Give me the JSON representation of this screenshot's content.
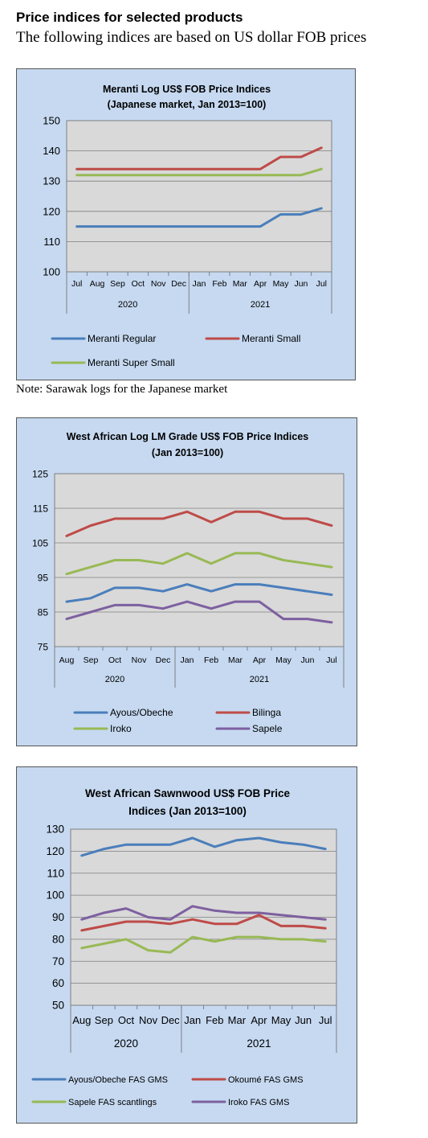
{
  "header": {
    "title": "Price indices for selected products",
    "subtitle": "The following indices are based on US dollar FOB prices"
  },
  "note": "Note: Sarawak logs for the Japanese market",
  "colors": {
    "blue": "#4a7ebb",
    "red": "#be4b48",
    "green": "#98b954",
    "purple": "#7d60a0",
    "panel_bg": "#c6d9f1",
    "plot_bg": "#d9d9d9"
  },
  "chart_data": [
    {
      "type": "line",
      "title": [
        "Meranti Log US$ FOB Price Indices",
        "(Japanese market, Jan 2013=100)"
      ],
      "categories": [
        "Jul",
        "Aug",
        "Sep",
        "Oct",
        "Nov",
        "Dec",
        "Jan",
        "Feb",
        "Mar",
        "Apr",
        "May",
        "Jun",
        "Jul"
      ],
      "year_groups": [
        {
          "label": "2020",
          "count": 6
        },
        {
          "label": "2021",
          "count": 7
        }
      ],
      "ylim": [
        100,
        150
      ],
      "yticks": [
        100,
        110,
        120,
        130,
        140,
        150
      ],
      "grid": true,
      "legend_position": "bottom",
      "series": [
        {
          "name": "Meranti Regular",
          "color": "#4a7ebb",
          "values": [
            115,
            115,
            115,
            115,
            115,
            115,
            115,
            115,
            115,
            115,
            119,
            119,
            121
          ]
        },
        {
          "name": "Meranti Small",
          "color": "#be4b48",
          "values": [
            134,
            134,
            134,
            134,
            134,
            134,
            134,
            134,
            134,
            134,
            138,
            138,
            141
          ]
        },
        {
          "name": "Meranti Super Small",
          "color": "#98b954",
          "values": [
            132,
            132,
            132,
            132,
            132,
            132,
            132,
            132,
            132,
            132,
            132,
            132,
            134
          ]
        }
      ]
    },
    {
      "type": "line",
      "title": [
        "West African Log LM Grade US$ FOB Price Indices",
        "(Jan 2013=100)"
      ],
      "categories": [
        "Aug",
        "Sep",
        "Oct",
        "Nov",
        "Dec",
        "Jan",
        "Feb",
        "Mar",
        "Apr",
        "May",
        "Jun",
        "Jul"
      ],
      "year_groups": [
        {
          "label": "2020",
          "count": 5
        },
        {
          "label": "2021",
          "count": 7
        }
      ],
      "ylim": [
        75,
        125
      ],
      "yticks": [
        75,
        85,
        95,
        105,
        115,
        125
      ],
      "grid": true,
      "legend_position": "bottom",
      "series": [
        {
          "name": "Ayous/Obeche",
          "color": "#4a7ebb",
          "values": [
            88,
            89,
            92,
            92,
            91,
            93,
            91,
            93,
            93,
            92,
            91,
            90
          ]
        },
        {
          "name": "Bilinga",
          "color": "#be4b48",
          "values": [
            107,
            110,
            112,
            112,
            112,
            114,
            111,
            114,
            114,
            112,
            112,
            110
          ]
        },
        {
          "name": "Iroko",
          "color": "#98b954",
          "values": [
            96,
            98,
            100,
            100,
            99,
            102,
            99,
            102,
            102,
            100,
            99,
            98
          ]
        },
        {
          "name": "Sapele",
          "color": "#7d60a0",
          "values": [
            83,
            85,
            87,
            87,
            86,
            88,
            86,
            88,
            88,
            83,
            83,
            82
          ]
        }
      ]
    },
    {
      "type": "line",
      "title": [
        "West African Sawnwood US$ FOB Price",
        "Indices (Jan 2013=100)"
      ],
      "categories": [
        "Aug",
        "Sep",
        "Oct",
        "Nov",
        "Dec",
        "Jan",
        "Feb",
        "Mar",
        "Apr",
        "May",
        "Jun",
        "Jul"
      ],
      "year_groups": [
        {
          "label": "2020",
          "count": 5
        },
        {
          "label": "2021",
          "count": 7
        }
      ],
      "ylim": [
        50,
        130
      ],
      "yticks": [
        50,
        60,
        70,
        80,
        90,
        100,
        110,
        120,
        130
      ],
      "grid": true,
      "legend_position": "bottom",
      "series": [
        {
          "name": "Ayous/Obeche  FAS GMS",
          "color": "#4a7ebb",
          "values": [
            118,
            121,
            123,
            123,
            123,
            126,
            122,
            125,
            126,
            124,
            123,
            121
          ]
        },
        {
          "name": "Okoumé  FAS GMS",
          "color": "#be4b48",
          "values": [
            84,
            86,
            88,
            88,
            87,
            89,
            87,
            87,
            91,
            86,
            86,
            85
          ]
        },
        {
          "name": "Sapele FAS scantlings",
          "color": "#98b954",
          "values": [
            76,
            78,
            80,
            75,
            74,
            81,
            79,
            81,
            81,
            80,
            80,
            79
          ]
        },
        {
          "name": "Iroko FAS GMS",
          "color": "#7d60a0",
          "values": [
            89,
            92,
            94,
            90,
            89,
            95,
            93,
            92,
            92,
            91,
            90,
            89
          ]
        }
      ]
    }
  ]
}
